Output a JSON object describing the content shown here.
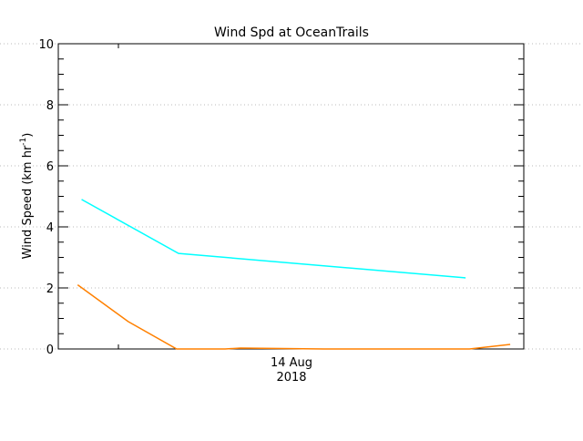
{
  "chart_data": {
    "type": "line",
    "title": "Wind Spd at OceanTrails",
    "ylabel": "Wind Speed (km hr",
    "ylabel_sup": "-1",
    "ylabel_close": ")",
    "ylim": [
      0,
      10
    ],
    "yticks": [
      0,
      2,
      4,
      6,
      8,
      10
    ],
    "x_unit": "hour of day, 14 Aug 2018",
    "xlim": [
      0,
      24
    ],
    "xtick_label_line1": "14 Aug",
    "xtick_label_line2": "2018",
    "grid": true,
    "series": [
      {
        "color": "#00ffff",
        "x": [
          1.2,
          6.2,
          21.0
        ],
        "values": [
          4.9,
          3.13,
          2.33
        ]
      },
      {
        "color": "#ff8000",
        "x": [
          1.0,
          3.6,
          6.1,
          8.6,
          9.4,
          13.7,
          16.1,
          21.2,
          23.3
        ],
        "values": [
          2.1,
          0.9,
          0.0,
          0.0,
          0.03,
          0.0,
          0.0,
          0.0,
          0.15
        ]
      }
    ]
  }
}
